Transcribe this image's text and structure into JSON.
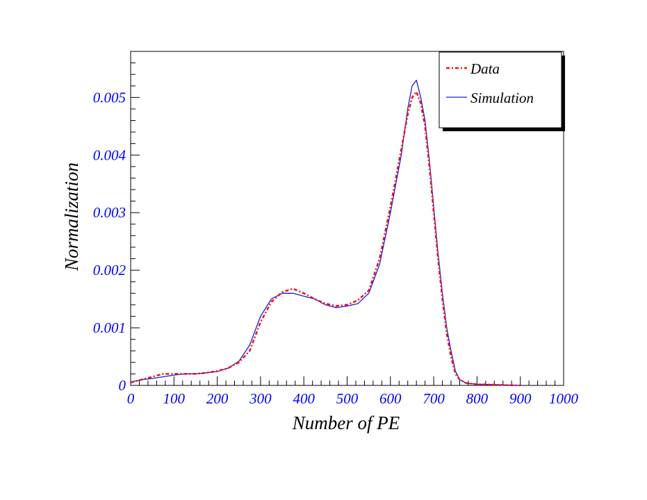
{
  "chart_data": {
    "type": "line",
    "title": "",
    "xlabel": "Number of PE",
    "ylabel": "Normalization",
    "xlim": [
      0,
      1000
    ],
    "ylim": [
      0,
      0.0058
    ],
    "x_ticks": [
      0,
      100,
      200,
      300,
      400,
      500,
      600,
      700,
      800,
      900,
      1000
    ],
    "x_tick_labels": [
      "0",
      "100",
      "200",
      "300",
      "400",
      "500",
      "600",
      "700",
      "800",
      "900",
      "1000"
    ],
    "y_ticks": [
      0,
      0.001,
      0.002,
      0.003,
      0.004,
      0.005
    ],
    "y_tick_labels": [
      "0",
      "0.001",
      "0.002",
      "0.003",
      "0.004",
      "0.005"
    ],
    "grid": false,
    "legend_position": "top-right",
    "colors": {
      "data": "#ee1111",
      "simulation": "#1a1ad8",
      "tick_labels": "#0000ff",
      "axis": "#000000"
    },
    "series": [
      {
        "name": "Data",
        "style": "dash-dot",
        "x": [
          0,
          25,
          50,
          75,
          100,
          125,
          150,
          175,
          200,
          225,
          250,
          275,
          300,
          325,
          350,
          375,
          400,
          425,
          450,
          475,
          500,
          525,
          550,
          575,
          600,
          625,
          640,
          650,
          660,
          670,
          680,
          690,
          700,
          710,
          720,
          730,
          740,
          750,
          760,
          775,
          800,
          850,
          900
        ],
        "values": [
          5e-05,
          0.0001,
          0.00015,
          0.0002,
          0.0002,
          0.0002,
          0.0002,
          0.00022,
          0.00025,
          0.0003,
          0.0004,
          0.0006,
          0.0011,
          0.00145,
          0.00162,
          0.00168,
          0.0016,
          0.0015,
          0.00142,
          0.00138,
          0.0014,
          0.00148,
          0.00165,
          0.0022,
          0.0031,
          0.0041,
          0.0047,
          0.005,
          0.0051,
          0.0049,
          0.0045,
          0.0038,
          0.003,
          0.0022,
          0.0015,
          0.0009,
          0.0005,
          0.0002,
          0.0001,
          4e-05,
          2e-05,
          1e-05,
          0.0
        ]
      },
      {
        "name": "Simulation",
        "style": "solid",
        "x": [
          0,
          25,
          50,
          75,
          100,
          125,
          150,
          175,
          200,
          225,
          250,
          275,
          300,
          325,
          350,
          375,
          400,
          425,
          450,
          475,
          500,
          525,
          550,
          575,
          600,
          625,
          640,
          650,
          660,
          670,
          680,
          690,
          700,
          710,
          720,
          730,
          740,
          750,
          760,
          775,
          800,
          850,
          900
        ],
        "values": [
          6e-05,
          0.0001,
          0.00012,
          0.00015,
          0.00018,
          0.0002,
          0.0002,
          0.00022,
          0.00024,
          0.0003,
          0.00042,
          0.0007,
          0.0012,
          0.0015,
          0.0016,
          0.0016,
          0.00155,
          0.0015,
          0.0014,
          0.00135,
          0.00138,
          0.00142,
          0.0016,
          0.0021,
          0.003,
          0.004,
          0.0048,
          0.0052,
          0.0053,
          0.005,
          0.0046,
          0.0039,
          0.0031,
          0.0023,
          0.0016,
          0.001,
          0.0006,
          0.00025,
          0.0001,
          4e-05,
          2e-05,
          1e-05,
          0.0
        ]
      }
    ]
  }
}
